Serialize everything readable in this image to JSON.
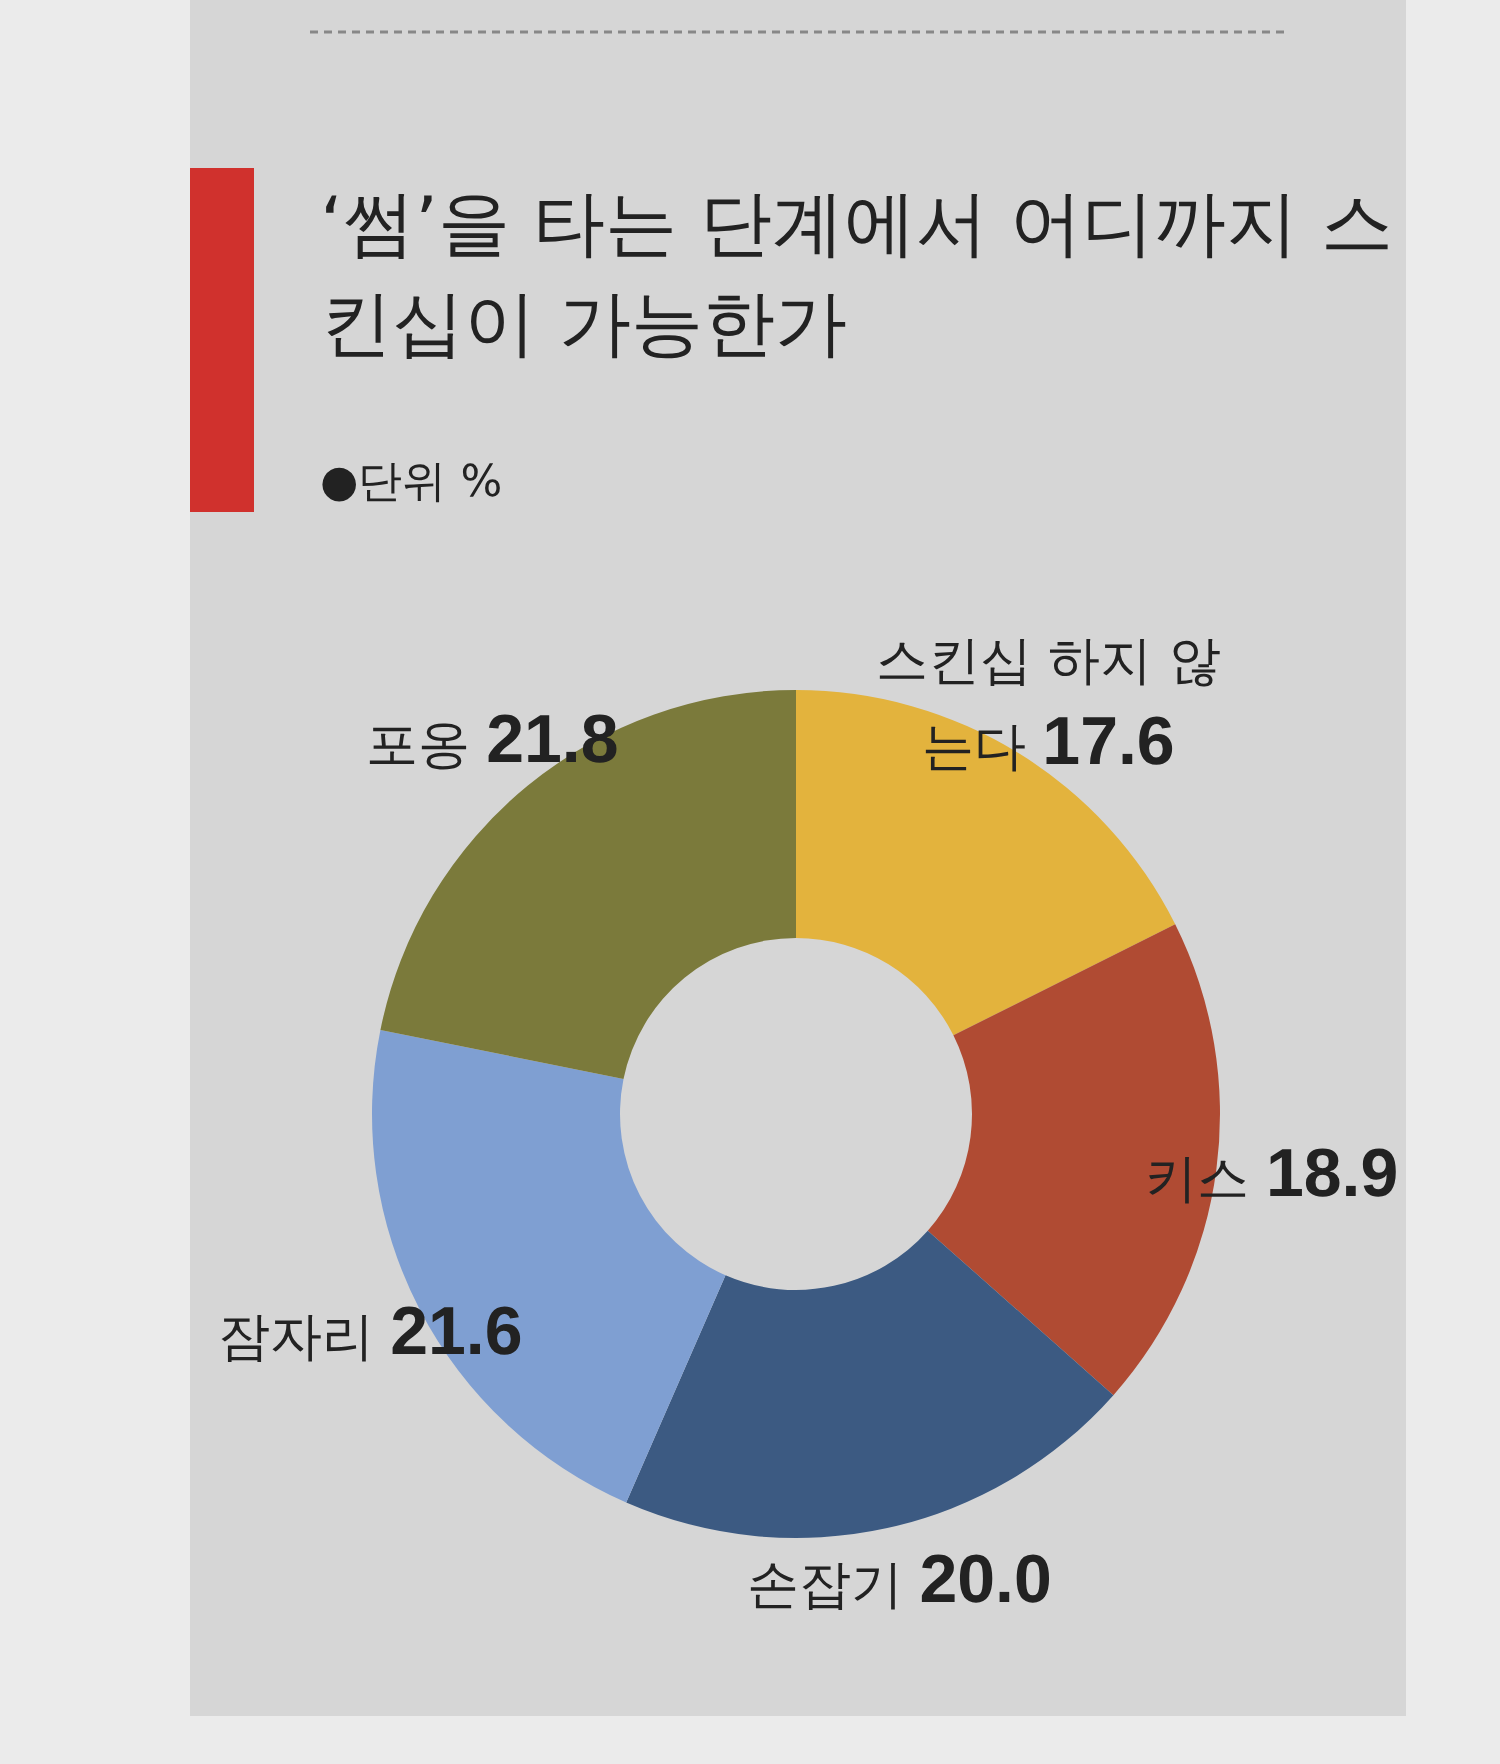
{
  "chart_data": {
    "type": "donut",
    "title": "‘썸’을 타는 단계에서 어디까지 스킨십이 가능한가",
    "subtitle": "●단위 %",
    "categories": [
      "스킨십 하지 않는다",
      "키스",
      "손잡기",
      "잠자리",
      "포옹"
    ],
    "values": [
      17.6,
      18.9,
      20.0,
      21.6,
      21.8
    ],
    "colors": [
      "#e3b33d",
      "#b04b33",
      "#3c5a82",
      "#7f9fd2",
      "#7b7a3b"
    ],
    "value_labels": [
      "17.6",
      "18.9",
      "20.0",
      "21.6",
      "21.8"
    ]
  }
}
